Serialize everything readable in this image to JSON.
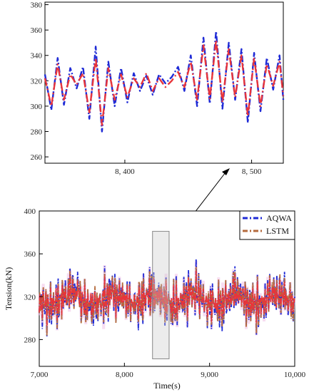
{
  "chart_data": [
    {
      "type": "line",
      "panel": "zoom",
      "xlim": [
        8337,
        8525
      ],
      "ylim": [
        255,
        382
      ],
      "x_ticks": [
        8400,
        8500
      ],
      "x_tick_labels": [
        "8, 400",
        "8, 500"
      ],
      "y_ticks": [
        260,
        280,
        300,
        320,
        340,
        360,
        380
      ],
      "y_tick_labels": [
        "260",
        "280",
        "300",
        "320",
        "340",
        "360",
        "380"
      ],
      "xlabel": "",
      "ylabel": "",
      "grid": false,
      "x": [
        8337,
        8342,
        8347,
        8352,
        8357,
        8362,
        8367,
        8372,
        8377,
        8382,
        8387,
        8392,
        8397,
        8402,
        8407,
        8412,
        8417,
        8422,
        8427,
        8432,
        8437,
        8442,
        8447,
        8452,
        8457,
        8462,
        8467,
        8472,
        8477,
        8482,
        8487,
        8492,
        8497,
        8502,
        8507,
        8512,
        8517,
        8522,
        8525
      ],
      "series": [
        {
          "name": "AQWA",
          "color": "#1f2bd6",
          "values": [
            325,
            297,
            338,
            301,
            330,
            314,
            331,
            290,
            347,
            280,
            335,
            300,
            330,
            303,
            326,
            312,
            324,
            309,
            325,
            318,
            323,
            331,
            312,
            340,
            300,
            354,
            302,
            359,
            298,
            350,
            305,
            345,
            287,
            342,
            296,
            338,
            313,
            340,
            305
          ]
        },
        {
          "name": "LSTM",
          "color": "#e8343a",
          "values": [
            322,
            300,
            333,
            305,
            325,
            317,
            326,
            295,
            338,
            285,
            330,
            305,
            325,
            307,
            322,
            315,
            326,
            312,
            322,
            315,
            320,
            327,
            315,
            335,
            305,
            348,
            306,
            352,
            303,
            345,
            307,
            340,
            292,
            338,
            300,
            333,
            316,
            335,
            308
          ]
        }
      ]
    },
    {
      "type": "line",
      "panel": "main",
      "xlim": [
        7000,
        10000
      ],
      "ylim": [
        255,
        400
      ],
      "x_ticks": [
        7000,
        8000,
        9000,
        10000
      ],
      "x_tick_labels": [
        "7,000",
        "8,000",
        "9,000",
        "10,000"
      ],
      "y_ticks": [
        280,
        320,
        360,
        400
      ],
      "y_tick_labels": [
        "280",
        "320",
        "360",
        "400"
      ],
      "xlabel": "Time(s)",
      "ylabel": "Tension(kN)",
      "legend_position": "top-right",
      "highlight_range_x": [
        8330,
        8525
      ],
      "highlight_range_y": [
        262,
        381
      ],
      "series": [
        {
          "name": "AQWA",
          "color": "#1f2bd6"
        },
        {
          "name": "LSTM",
          "color": "#b46a3c"
        },
        {
          "name": "",
          "color": "#e8343a"
        }
      ]
    }
  ]
}
